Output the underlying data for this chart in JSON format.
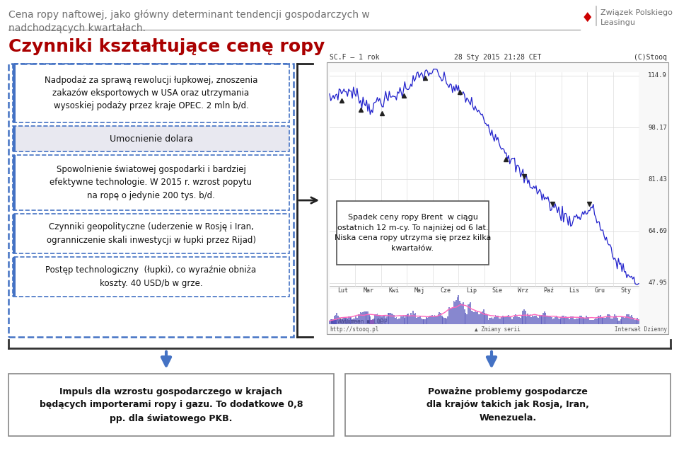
{
  "title_header": "Cena ropy naftowej, jako główny determinant tendencji gospodarczych w\nnadchodzących kwartałach.",
  "logo_text": "Związek Polskiego\nLeasingu",
  "main_title": "Czynniki kształtujące cenę ropy",
  "box1_text": "Nadpodaż za sprawą rewolucji łupkowej, znoszenia\nzakazów eksportowych w USA oraz utrzymania\nwysoskiej podaży przez kraje OPEC. 2 mln b/d.",
  "box2_text": "Umocnienie dolara",
  "box3_text": "Spowolnienie światowej gospodarki i bardziej\nefektywne technologie. W 2015 r. wzrost popytu\nna ropę o jedynie 200 tys. b/d.",
  "box4_text": "Czynniki geopolityczne (uderzenie w Rosję i Iran,\nogranniczenie skali inwestycji w łupki przez Rijad)",
  "box5_text": "Postęp technologiczny  (łupki), co wyraźnie obniża\nkoszty. 40 USD/b w grze.",
  "chart_annotation": "Spadek ceny ropy Brent  w ciągu\nostatnich 12 m-cy. To najniżej od 6 lat.\nNiska cena ropy utrzyma się przez kilka\nkwartałów.",
  "chart_header_left": "SC.F – 1 rok",
  "chart_header_mid": "28 Sty 2015 21:28 CET",
  "chart_header_right": "(C)Stooq",
  "chart_footer_left": "http://stooq.pl",
  "chart_footer_mid": "▲ Zmiany serii",
  "chart_footer_right": "Interwał Dzienny",
  "chart_labels": [
    "Lut",
    "Mar",
    "Kwi",
    "Maj",
    "Cze",
    "Lip",
    "Sie",
    "Wrz",
    "Paź",
    "Lis",
    "Gru",
    "Sty"
  ],
  "chart_yvals": [
    "114.9",
    "98.17",
    "81.43",
    "64.69",
    "47.95"
  ],
  "chart_yprices": [
    114.9,
    98.17,
    81.43,
    64.69,
    47.95
  ],
  "bottom_left_text": "Impuls dla wzrostu gospodarczego w krajach\nbędących importerami ropy i gazu. To dodatkowe 0,8\npp. dla światowego PKB.",
  "bottom_right_text": "Poważne problemy gospodarcze\ndla krajów takich jak Rosja, Iran,\nWenezuela.",
  "bg_color": "#ffffff",
  "header_text_color": "#707070",
  "main_title_color": "#aa0000",
  "box_border_color": "#4472c4",
  "arrow_color": "#4472c4",
  "bottom_box_border": "#888888"
}
